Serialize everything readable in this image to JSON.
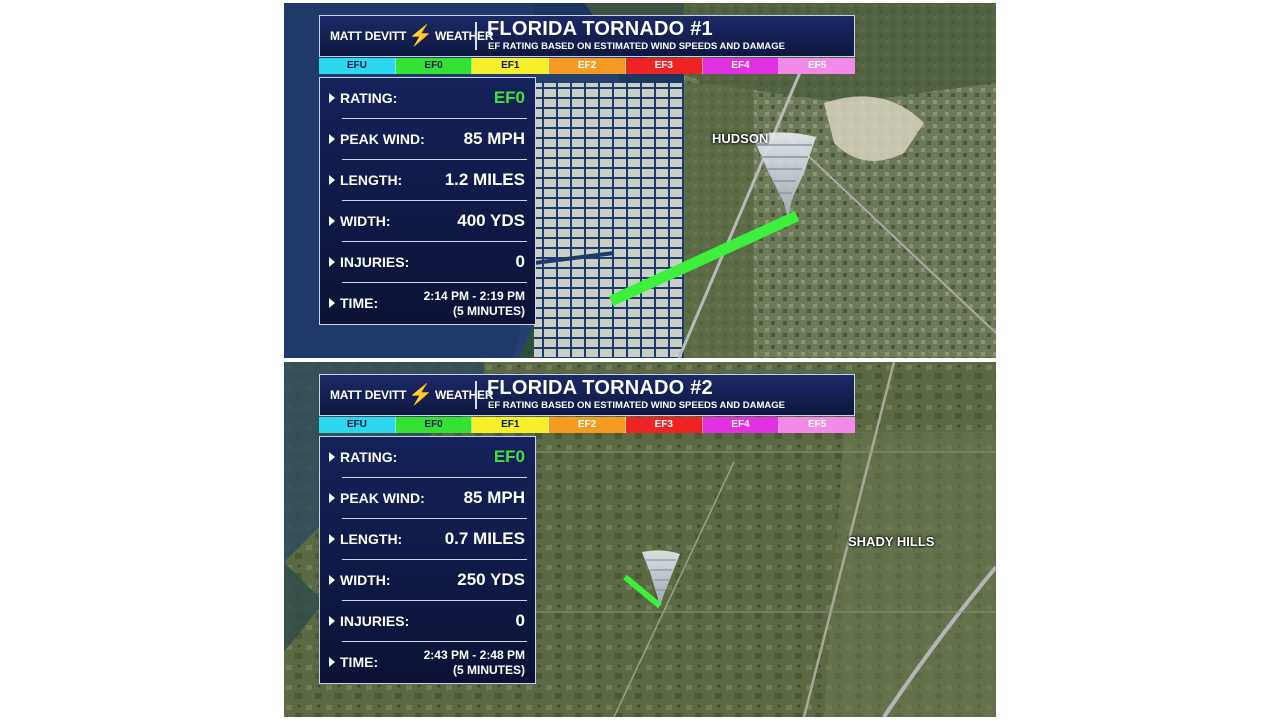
{
  "brand": "MATT DEVITT",
  "brand_suffix": "WEATHER",
  "subtitle": "EF RATING BASED ON ESTIMATED WIND SPEEDS AND DAMAGE",
  "ef_scale": [
    {
      "label": "EFU",
      "bg": "#2bd8ee",
      "fg": "#0b1a4a"
    },
    {
      "label": "EF0",
      "bg": "#33e233",
      "fg": "#0b1a4a"
    },
    {
      "label": "EF1",
      "bg": "#f5f02a",
      "fg": "#0b1a4a"
    },
    {
      "label": "EF2",
      "bg": "#f59a22",
      "fg": "#ffffff"
    },
    {
      "label": "EF3",
      "bg": "#ee2424",
      "fg": "#ffffff"
    },
    {
      "label": "EF4",
      "bg": "#e230e2",
      "fg": "#ffffff"
    },
    {
      "label": "EF5",
      "bg": "#f48ae8",
      "fg": "#ffffff"
    }
  ],
  "colors": {
    "path": "#3cf03c",
    "panel_bg": "#0e1740",
    "rating": "#3ee23e"
  },
  "panels": [
    {
      "title": "FLORIDA TORNADO #1",
      "place": "HUDSON",
      "rows": [
        {
          "label": "RATING:",
          "value": "EF0"
        },
        {
          "label": "PEAK WIND:",
          "value": "85 MPH"
        },
        {
          "label": "LENGTH:",
          "value": "1.2 MILES"
        },
        {
          "label": "WIDTH:",
          "value": "400 YDS"
        },
        {
          "label": "INJURIES:",
          "value": "0"
        },
        {
          "label": "TIME:",
          "value": "2:14 PM - 2:19 PM",
          "value2": "(5 MINUTES)"
        }
      ]
    },
    {
      "title": "FLORIDA TORNADO #2",
      "place": "SHADY HILLS",
      "rows": [
        {
          "label": "RATING:",
          "value": "EF0"
        },
        {
          "label": "PEAK WIND:",
          "value": "85 MPH"
        },
        {
          "label": "LENGTH:",
          "value": "0.7 MILES"
        },
        {
          "label": "WIDTH:",
          "value": "250 YDS"
        },
        {
          "label": "INJURIES:",
          "value": "0"
        },
        {
          "label": "TIME:",
          "value": "2:43 PM - 2:48 PM",
          "value2": "(5 MINUTES)"
        }
      ]
    }
  ]
}
